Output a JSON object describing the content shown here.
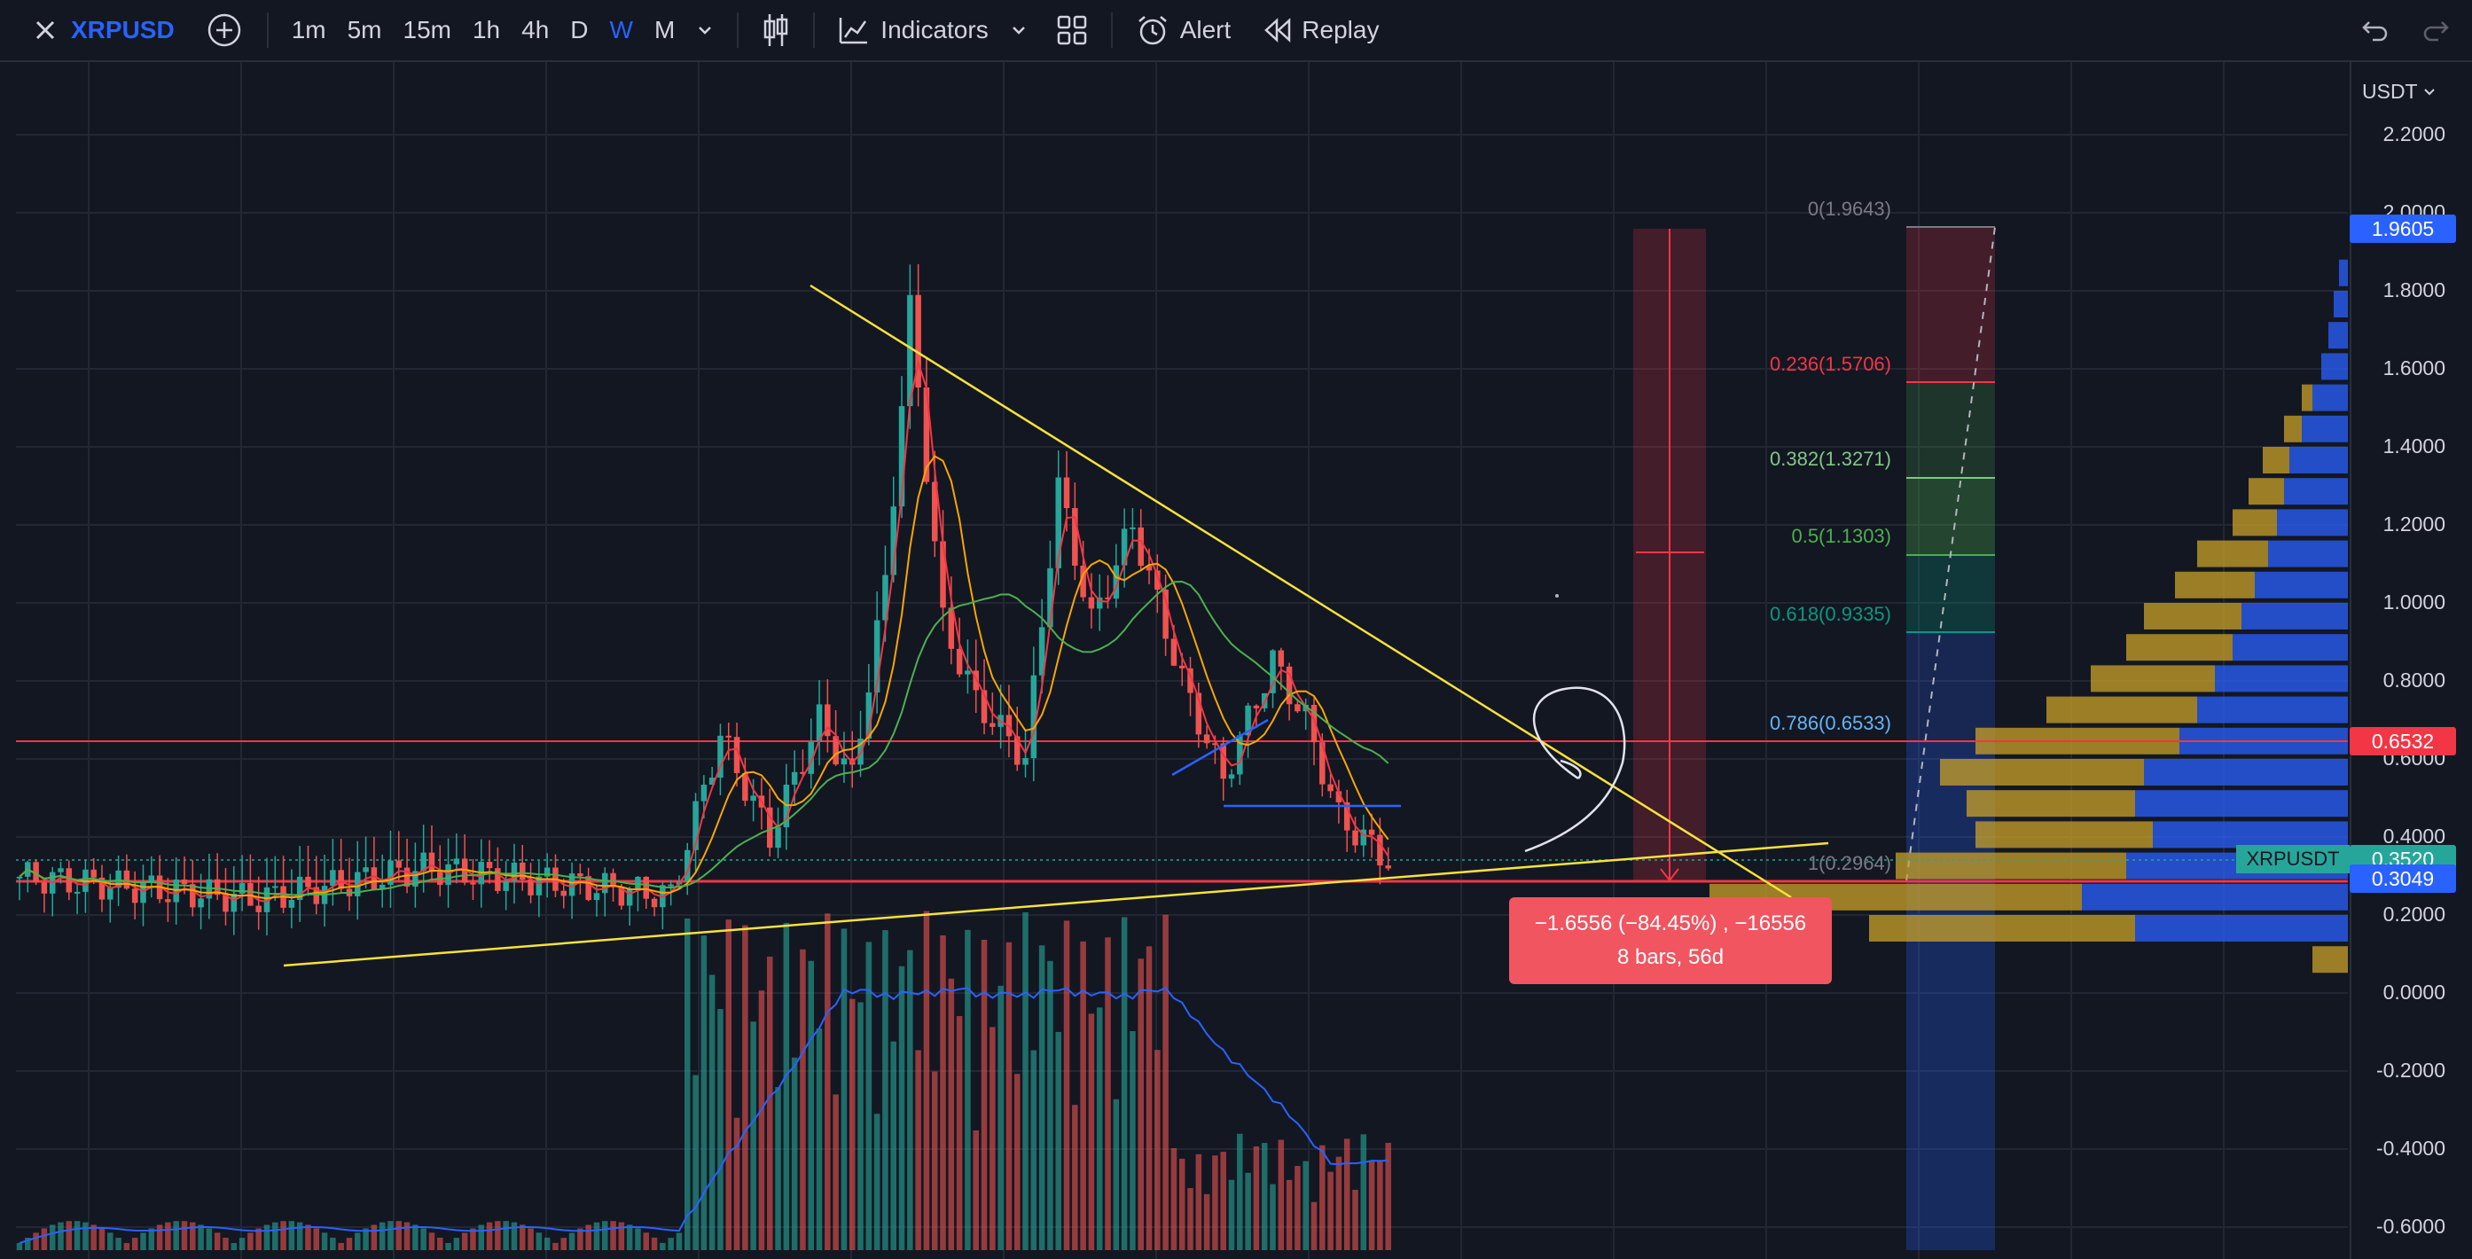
{
  "toolbar": {
    "symbol": "XRPUSD",
    "intervals": [
      "1m",
      "5m",
      "15m",
      "1h",
      "4h",
      "D",
      "W",
      "M"
    ],
    "active_interval": "W",
    "indicators_label": "Indicators",
    "alert_label": "Alert",
    "replay_label": "Replay"
  },
  "chart": {
    "currency": "USDT",
    "symbol_tag": "XRPUSDT",
    "price_axis": [
      "2.2000",
      "2.0000",
      "1.8000",
      "1.6000",
      "1.4000",
      "1.2000",
      "1.0000",
      "0.8000",
      "0.6000",
      "0.4000",
      "0.2000",
      "0.0000",
      "-0.2000",
      "-0.4000",
      "-0.6000"
    ],
    "price_tags": {
      "high": "1.9605",
      "resistance": "0.6532",
      "last": "0.3520",
      "support": "0.3049"
    },
    "fib_levels": [
      {
        "label": "0(1.9643)",
        "color": "#787b86"
      },
      {
        "label": "0.236(1.5706)",
        "color": "#f23645"
      },
      {
        "label": "0.382(1.3271)",
        "color": "#81c784"
      },
      {
        "label": "0.5(1.1303)",
        "color": "#4caf50"
      },
      {
        "label": "0.618(0.9335)",
        "color": "#089981"
      },
      {
        "label": "0.786(0.6533)",
        "color": "#64b5f6"
      },
      {
        "label": "1(0.2964)",
        "color": "#787b86"
      }
    ],
    "measure": {
      "line1": "−1.6556 (−84.45%) , −16556",
      "line2": "8 bars, 56d"
    },
    "colors": {
      "up": "#26a69a",
      "down": "#ef5350",
      "accent": "#2962ff",
      "trendline": "#f7e23b",
      "background": "#131722"
    }
  }
}
